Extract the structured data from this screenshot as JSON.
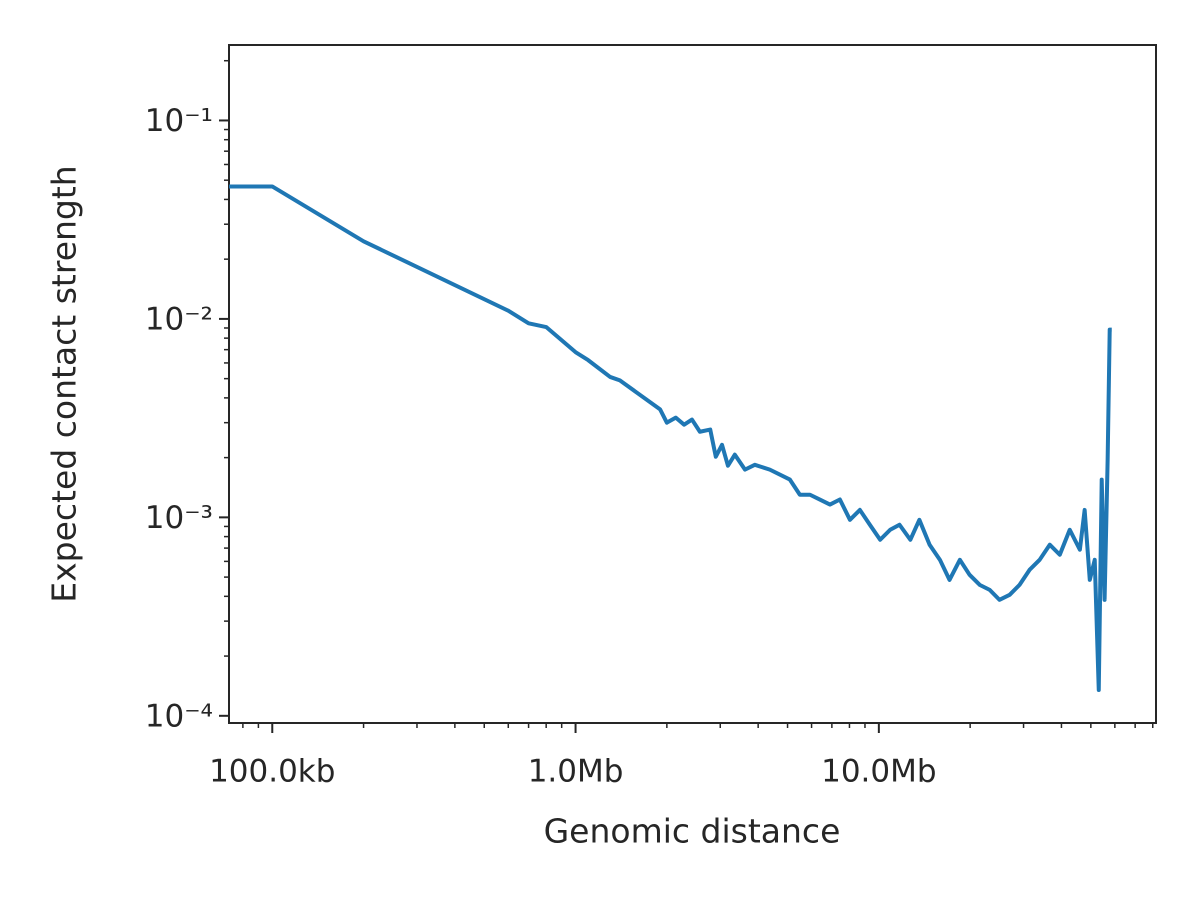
{
  "chart_data": {
    "type": "line",
    "x_label": "Genomic distance",
    "y_label": "Expected contact strength",
    "xscale": "log",
    "yscale": "log",
    "xlim": [
      72000,
      82000000
    ],
    "ylim": [
      9.2e-05,
      0.24
    ],
    "xticks": [
      {
        "value": 100000,
        "label": "100.0kb"
      },
      {
        "value": 1000000,
        "label": "1.0Mb"
      },
      {
        "value": 10000000,
        "label": "10.0Mb"
      }
    ],
    "yticks": [
      {
        "value": 0.1,
        "label": "10⁻¹"
      },
      {
        "value": 0.01,
        "label": "10⁻²"
      },
      {
        "value": 0.001,
        "label": "10⁻³"
      },
      {
        "value": 0.0001,
        "label": "10⁻⁴"
      }
    ],
    "minor_xticks": [
      80000,
      90000,
      200000,
      300000,
      400000,
      500000,
      600000,
      700000,
      800000,
      900000,
      2000000,
      3000000,
      4000000,
      5000000,
      6000000,
      7000000,
      8000000,
      9000000,
      20000000,
      30000000,
      40000000,
      50000000,
      60000000,
      70000000,
      80000000
    ],
    "minor_yticks": [
      0.0002,
      0.0003,
      0.0004,
      0.0005,
      0.0006,
      0.0007,
      0.0008,
      0.0009,
      0.002,
      0.003,
      0.004,
      0.005,
      0.006,
      0.007,
      0.008,
      0.009,
      0.02,
      0.03,
      0.04,
      0.05,
      0.06,
      0.07,
      0.08,
      0.09,
      0.2
    ],
    "series": [
      {
        "color": "#1f77b4",
        "x": [
          72000,
          100000,
          200000,
          600000,
          700000,
          800000,
          1000000,
          1100000,
          1300000,
          1400000,
          1900000,
          2000000,
          2140000,
          2280000,
          2420000,
          2570000,
          2780000,
          2900000,
          3040000,
          3180000,
          3350000,
          3620000,
          3900000,
          4370000,
          5090000,
          5490000,
          5930000,
          6390000,
          6900000,
          7440000,
          8030000,
          8660000,
          9340000,
          10100000,
          10900000,
          11700000,
          12700000,
          13600000,
          14700000,
          15900000,
          17100000,
          18500000,
          19900000,
          21500000,
          23200000,
          25000000,
          27000000,
          29100000,
          31400000,
          33900000,
          36600000,
          39500000,
          42600000,
          46000000,
          47700000,
          49600000,
          51500000,
          53100000,
          54300000,
          55500000,
          56800000,
          57700000,
          58600000
        ],
        "values": [
          0.0465,
          0.0465,
          0.0246,
          0.011,
          0.0095,
          0.0091,
          0.0068,
          0.0062,
          0.0051,
          0.0049,
          0.0035,
          0.003,
          0.00318,
          0.00293,
          0.00311,
          0.0027,
          0.00277,
          0.00202,
          0.00232,
          0.00182,
          0.00207,
          0.00174,
          0.00184,
          0.00174,
          0.00155,
          0.0013,
          0.0013,
          0.00123,
          0.00116,
          0.00123,
          0.000972,
          0.00109,
          0.000918,
          0.000771,
          0.000866,
          0.000918,
          0.000771,
          0.000972,
          0.000728,
          0.000611,
          0.000484,
          0.000611,
          0.000514,
          0.000457,
          0.000431,
          0.000384,
          0.000407,
          0.000457,
          0.000544,
          0.000611,
          0.000728,
          0.000648,
          0.000866,
          0.000687,
          0.00109,
          0.000484,
          0.000611,
          0.000135,
          0.00155,
          0.000384,
          0.00195,
          0.00883,
          0.00883
        ]
      }
    ]
  }
}
